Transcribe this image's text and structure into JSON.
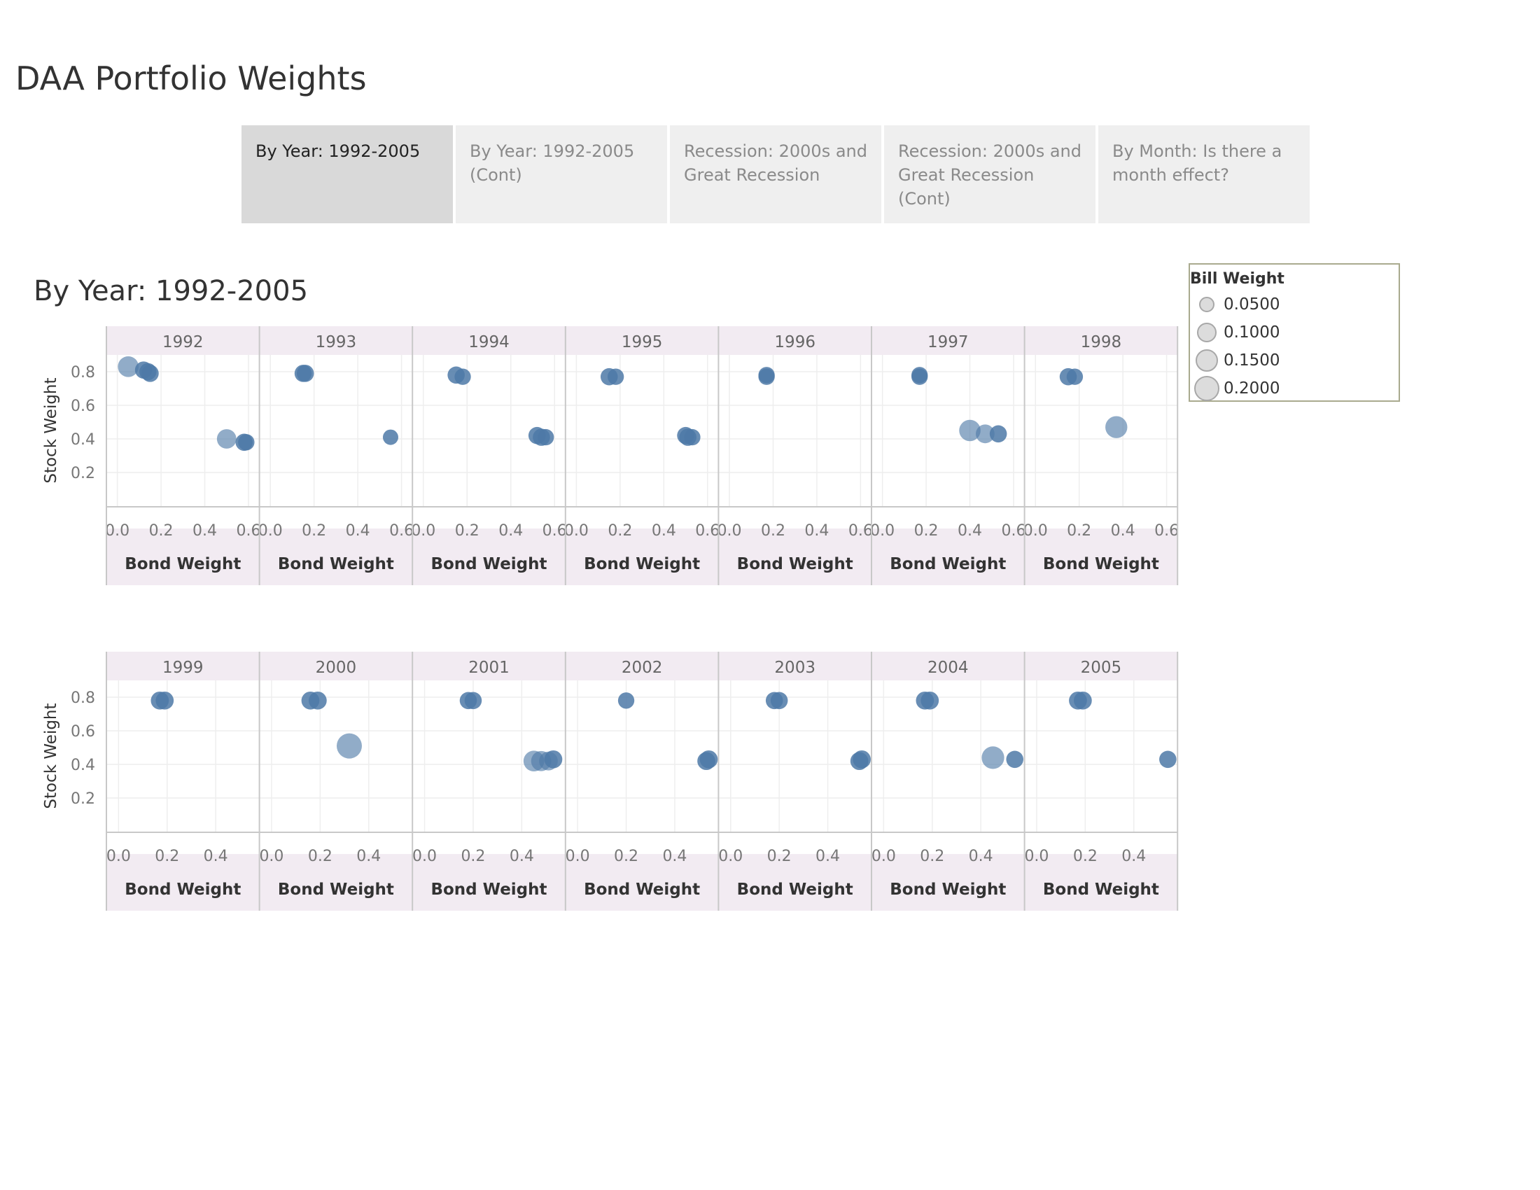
{
  "page": {
    "title": "DAA Portfolio Weights",
    "sheet_title": "By Year: 1992-2005"
  },
  "tabs": [
    {
      "label": "By Year: 1992-2005",
      "active": true
    },
    {
      "label": "By Year: 1992-2005 (Cont)",
      "active": false
    },
    {
      "label": "Recession: 2000s and Great Recession",
      "active": false
    },
    {
      "label": "Recession: 2000s and Great Recession (Cont)",
      "active": false
    },
    {
      "label": "By Month: Is there a month effect?",
      "active": false
    }
  ],
  "legend": {
    "title": "Bill Weight",
    "items": [
      {
        "label": "0.0500",
        "value": 0.05
      },
      {
        "label": "0.1000",
        "value": 0.1
      },
      {
        "label": "0.1500",
        "value": 0.15
      },
      {
        "label": "0.2000",
        "value": 0.2
      }
    ]
  },
  "colors": {
    "mark": "#4e79a7",
    "header_bg": "#f2ebf2",
    "grid": "#eeeeee",
    "axis": "#c8c8c8"
  },
  "chart_data": {
    "type": "scatter",
    "xlabel": "Bond Weight",
    "ylabel": "Stock Weight",
    "ylim": [
      0,
      0.9
    ],
    "yticks": [
      "0.2",
      "0.4",
      "0.6",
      "0.8"
    ],
    "rows": [
      {
        "xlim": [
          -0.05,
          0.65
        ],
        "xticks": [
          "0.0",
          "0.2",
          "0.4",
          "0.6"
        ],
        "panels": [
          {
            "year": "1992",
            "points": [
              [
                0.05,
                0.83,
                0.12
              ],
              [
                0.12,
                0.81,
                0.07
              ],
              [
                0.14,
                0.8,
                0.07
              ],
              [
                0.15,
                0.79,
                0.07
              ],
              [
                0.5,
                0.4,
                0.1
              ],
              [
                0.58,
                0.38,
                0.07
              ],
              [
                0.59,
                0.38,
                0.06
              ]
            ]
          },
          {
            "year": "1993",
            "points": [
              [
                0.15,
                0.79,
                0.07
              ],
              [
                0.16,
                0.79,
                0.07
              ],
              [
                0.55,
                0.41,
                0.05
              ]
            ]
          },
          {
            "year": "1994",
            "points": [
              [
                0.15,
                0.78,
                0.07
              ],
              [
                0.18,
                0.77,
                0.06
              ],
              [
                0.52,
                0.42,
                0.07
              ],
              [
                0.54,
                0.41,
                0.07
              ],
              [
                0.56,
                0.41,
                0.06
              ]
            ]
          },
          {
            "year": "1995",
            "points": [
              [
                0.15,
                0.77,
                0.07
              ],
              [
                0.18,
                0.77,
                0.06
              ],
              [
                0.5,
                0.42,
                0.07
              ],
              [
                0.51,
                0.41,
                0.07
              ],
              [
                0.53,
                0.41,
                0.06
              ]
            ]
          },
          {
            "year": "1996",
            "points": [
              [
                0.17,
                0.78,
                0.06
              ],
              [
                0.17,
                0.77,
                0.06
              ]
            ]
          },
          {
            "year": "1997",
            "points": [
              [
                0.17,
                0.78,
                0.06
              ],
              [
                0.17,
                0.77,
                0.06
              ],
              [
                0.4,
                0.45,
                0.13
              ],
              [
                0.47,
                0.43,
                0.09
              ],
              [
                0.53,
                0.43,
                0.07
              ]
            ]
          },
          {
            "year": "1998",
            "points": [
              [
                0.15,
                0.77,
                0.07
              ],
              [
                0.18,
                0.77,
                0.06
              ],
              [
                0.37,
                0.47,
                0.14
              ]
            ]
          }
        ]
      },
      {
        "xlim": [
          -0.05,
          0.58
        ],
        "xticks": [
          "0.0",
          "0.2",
          "0.4"
        ],
        "panels": [
          {
            "year": "1999",
            "points": [
              [
                0.17,
                0.78,
                0.08
              ],
              [
                0.19,
                0.78,
                0.08
              ]
            ]
          },
          {
            "year": "2000",
            "points": [
              [
                0.16,
                0.78,
                0.08
              ],
              [
                0.19,
                0.78,
                0.08
              ],
              [
                0.32,
                0.51,
                0.2
              ]
            ]
          },
          {
            "year": "2001",
            "points": [
              [
                0.18,
                0.78,
                0.07
              ],
              [
                0.2,
                0.78,
                0.07
              ],
              [
                0.45,
                0.42,
                0.12
              ],
              [
                0.48,
                0.42,
                0.11
              ],
              [
                0.51,
                0.42,
                0.09
              ],
              [
                0.53,
                0.43,
                0.08
              ]
            ]
          },
          {
            "year": "2002",
            "points": [
              [
                0.2,
                0.78,
                0.06
              ],
              [
                0.53,
                0.42,
                0.08
              ],
              [
                0.54,
                0.43,
                0.08
              ]
            ]
          },
          {
            "year": "2003",
            "points": [
              [
                0.18,
                0.78,
                0.07
              ],
              [
                0.2,
                0.78,
                0.07
              ],
              [
                0.53,
                0.42,
                0.08
              ],
              [
                0.54,
                0.43,
                0.08
              ]
            ]
          },
          {
            "year": "2004",
            "points": [
              [
                0.17,
                0.78,
                0.08
              ],
              [
                0.19,
                0.78,
                0.08
              ],
              [
                0.45,
                0.44,
                0.15
              ],
              [
                0.54,
                0.43,
                0.07
              ]
            ]
          },
          {
            "year": "2005",
            "points": [
              [
                0.17,
                0.78,
                0.08
              ],
              [
                0.19,
                0.78,
                0.08
              ],
              [
                0.54,
                0.43,
                0.07
              ]
            ]
          }
        ]
      }
    ]
  }
}
